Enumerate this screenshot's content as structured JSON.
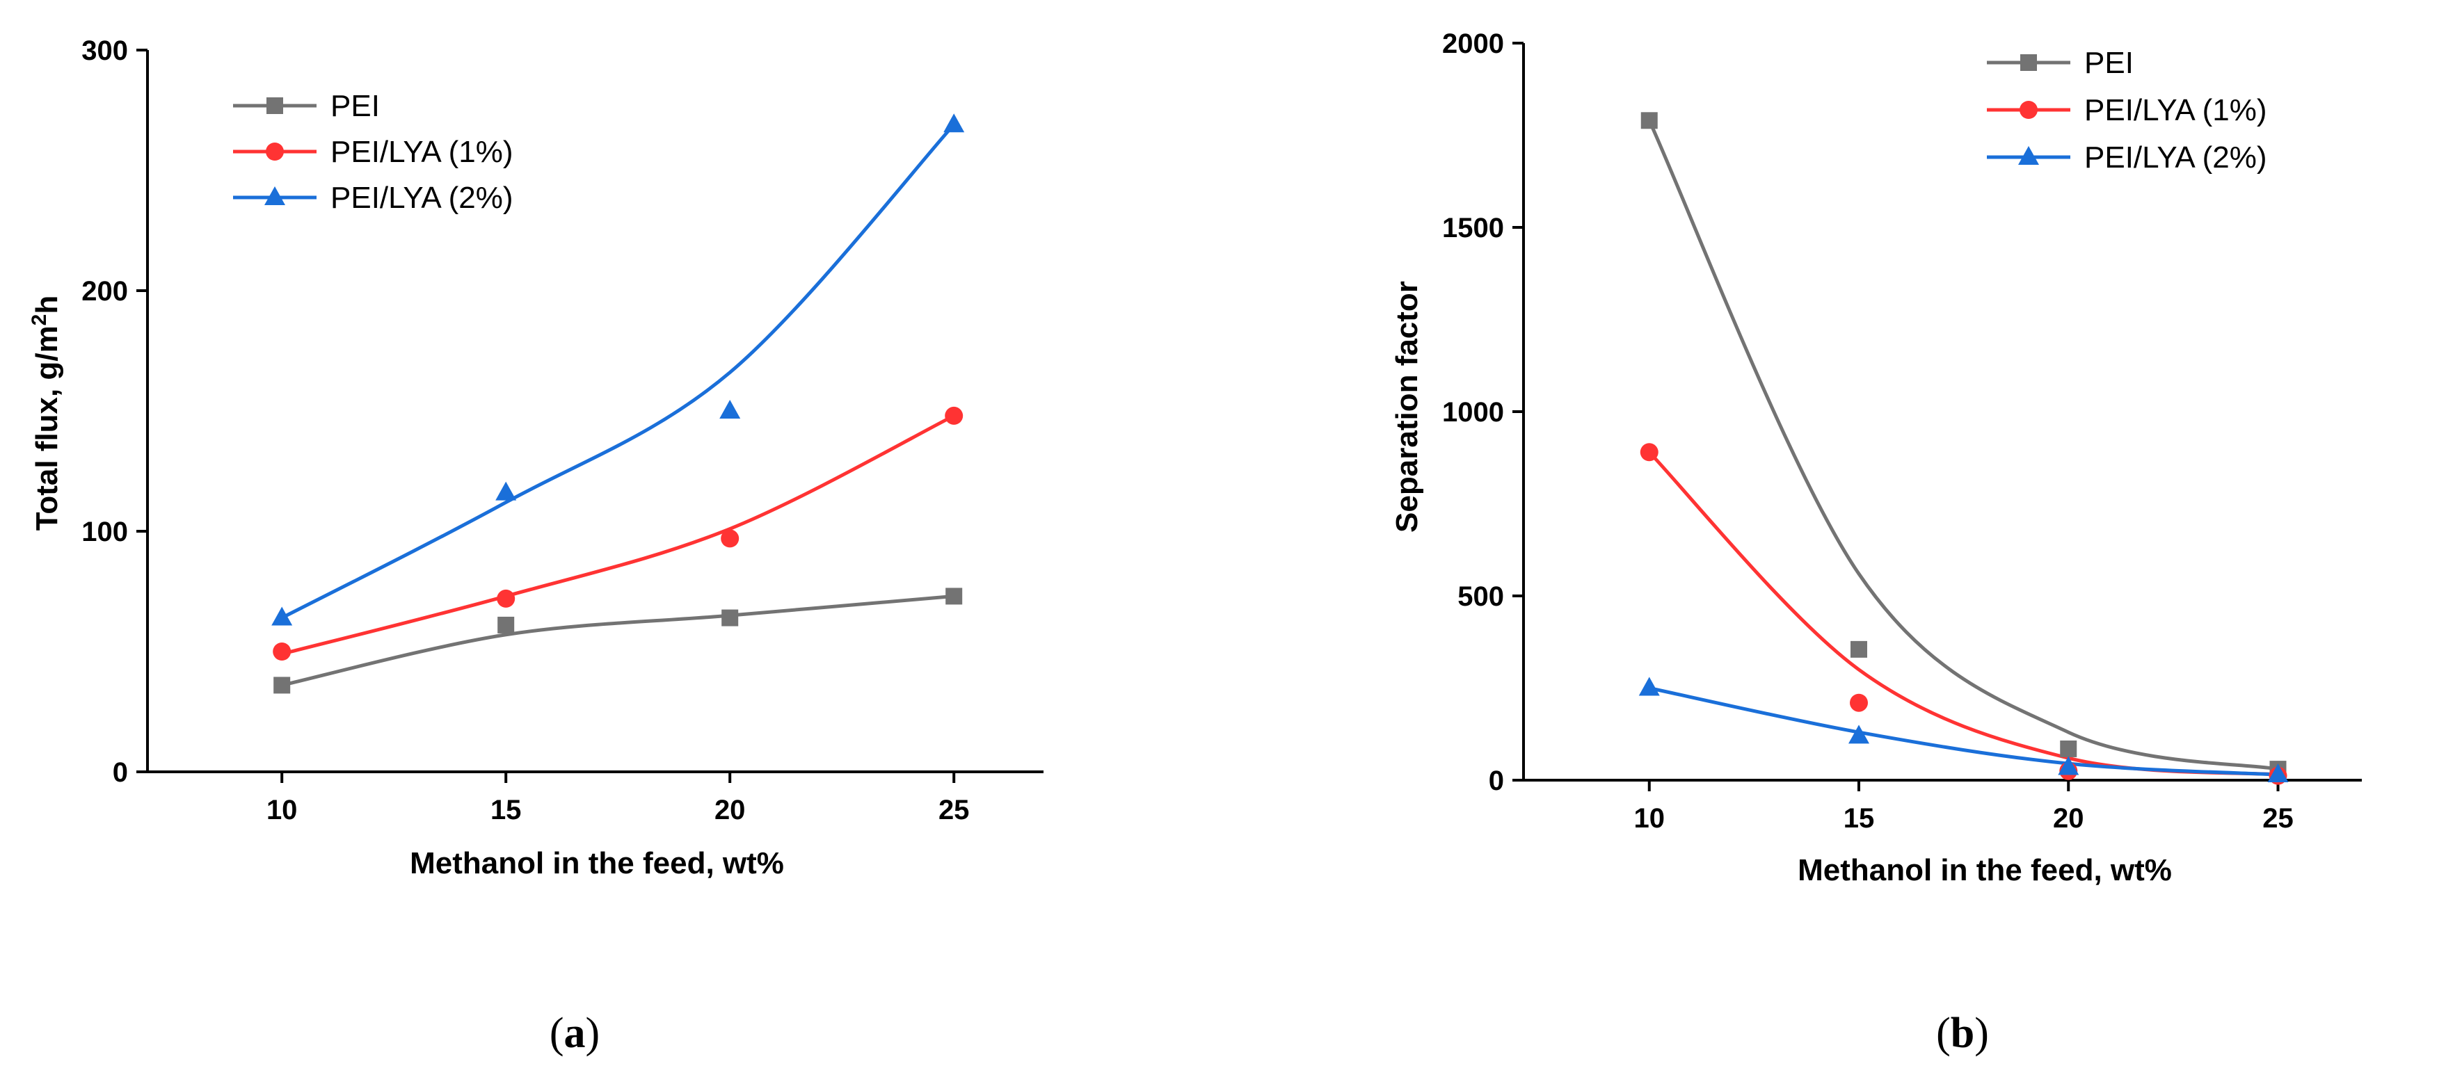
{
  "chart_data": [
    {
      "type": "line",
      "panel": "a",
      "caption_letter": "a",
      "ylabel_main": "Total flux, g/m",
      "ylabel_sup": "2",
      "ylabel_tail": "h",
      "xlabel": "Methanol in the feed, wt%",
      "x": [
        10,
        15,
        20,
        25
      ],
      "xlim": [
        7,
        27
      ],
      "ylim": [
        0,
        300
      ],
      "xticks": [
        10,
        15,
        20,
        25
      ],
      "yticks": [
        0,
        100,
        200,
        300
      ],
      "legend_position": "top-left",
      "series": [
        {
          "name": "PEI",
          "marker": "square",
          "color": "#737373",
          "values": [
            36,
            61,
            64,
            73
          ],
          "fit": [
            36,
            57,
            65,
            73
          ]
        },
        {
          "name": "PEI/LYA (1%)",
          "marker": "circle",
          "color": "#ff3333",
          "values": [
            50,
            72,
            97,
            148
          ],
          "fit": [
            49,
            73,
            101,
            148
          ]
        },
        {
          "name": "PEI/LYA (2%)",
          "marker": "triangle",
          "color": "#1a6fd9",
          "values": [
            64,
            116,
            150,
            269
          ],
          "fit": [
            64,
            112,
            166,
            269
          ]
        }
      ]
    },
    {
      "type": "line",
      "panel": "b",
      "caption_letter": "b",
      "ylabel": "Separation factor",
      "xlabel": "Methanol in the feed, wt%",
      "x": [
        10,
        15,
        20,
        25
      ],
      "xlim": [
        7,
        27
      ],
      "ylim": [
        0,
        2000
      ],
      "xticks": [
        10,
        15,
        20,
        25
      ],
      "yticks": [
        0,
        500,
        1000,
        1500,
        2000
      ],
      "legend_position": "top-right",
      "series": [
        {
          "name": "PEI",
          "marker": "square",
          "color": "#737373",
          "values": [
            1790,
            355,
            85,
            30
          ],
          "fit": [
            1790,
            560,
            130,
            30
          ]
        },
        {
          "name": "PEI/LYA (1%)",
          "marker": "circle",
          "color": "#ff3333",
          "values": [
            890,
            210,
            25,
            12
          ],
          "fit": [
            890,
            300,
            60,
            15
          ]
        },
        {
          "name": "PEI/LYA (2%)",
          "marker": "triangle",
          "color": "#1a6fd9",
          "values": [
            250,
            120,
            35,
            15
          ],
          "fit": [
            250,
            130,
            45,
            15
          ]
        }
      ]
    }
  ]
}
